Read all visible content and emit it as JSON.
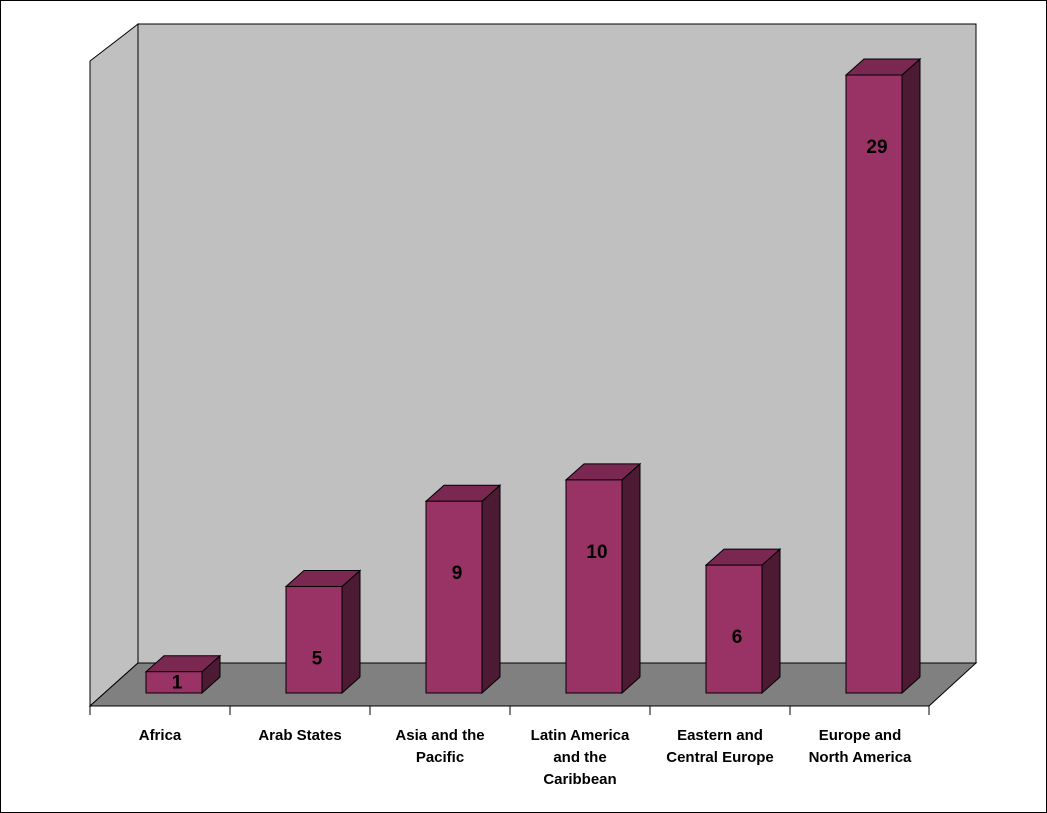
{
  "chart_data": {
    "type": "bar",
    "style": "3d-column",
    "categories": [
      [
        "Africa"
      ],
      [
        "Arab States"
      ],
      [
        "Asia and the",
        "Pacific"
      ],
      [
        "Latin America",
        "and the",
        "Caribbean"
      ],
      [
        "Eastern and",
        "Central Europe"
      ],
      [
        "Europe and",
        "North America"
      ]
    ],
    "values": [
      1,
      5,
      9,
      10,
      6,
      29
    ],
    "ylim": [
      0,
      30
    ],
    "grid": false,
    "legend": false,
    "colors": {
      "bar_front": "#993366",
      "bar_top": "#7a2851",
      "bar_side": "#4d1a33",
      "back_wall": "#c0c0c0",
      "side_wall": "#c0c0c0",
      "floor": "#808080",
      "outline": "#000000"
    }
  }
}
